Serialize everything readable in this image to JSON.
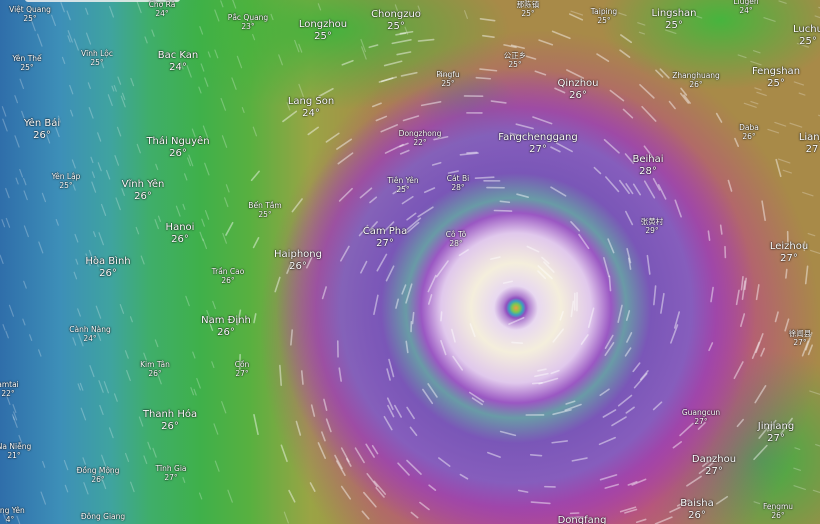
{
  "map": {
    "layer": "wind",
    "storm_eye_colors": [
      "#f0a040",
      "#7ec850",
      "#3aa0c0",
      "#9050c0"
    ],
    "labels": [
      {
        "name": "Việt Quang",
        "temp": "25°"
      },
      {
        "name": "Chợ Rã",
        "temp": "24°"
      },
      {
        "name": "Pắc Quang",
        "temp": "23°"
      },
      {
        "name": "Longzhou",
        "temp": "25°"
      },
      {
        "name": "Chongzuo",
        "temp": "25°"
      },
      {
        "name": "那陈镇",
        "temp": "25°"
      },
      {
        "name": "Taiping",
        "temp": "25°"
      },
      {
        "name": "Lingshan",
        "temp": "25°"
      },
      {
        "name": "Liugen",
        "temp": "24°"
      },
      {
        "name": "Luchu",
        "temp": "25°"
      },
      {
        "name": "Yên Thế",
        "temp": "25°"
      },
      {
        "name": "Vĩnh Lộc",
        "temp": "25°"
      },
      {
        "name": "Bac Kan",
        "temp": "24°"
      },
      {
        "name": "Pingfu",
        "temp": "25°"
      },
      {
        "name": "公正乡",
        "temp": "25°"
      },
      {
        "name": "Qinzhou",
        "temp": "26°"
      },
      {
        "name": "Zhanghuang",
        "temp": "26°"
      },
      {
        "name": "Fengshan",
        "temp": "25°"
      },
      {
        "name": "Lang Son",
        "temp": "24°"
      },
      {
        "name": "Yên Bái",
        "temp": "26°"
      },
      {
        "name": "Thái Nguyên",
        "temp": "26°"
      },
      {
        "name": "Dongzhong",
        "temp": "22°"
      },
      {
        "name": "Fangchenggang",
        "temp": "27°"
      },
      {
        "name": "Daba",
        "temp": "26°"
      },
      {
        "name": "Lianji",
        "temp": "27"
      },
      {
        "name": "Beihai",
        "temp": "28°"
      },
      {
        "name": "Yên Lập",
        "temp": "25°"
      },
      {
        "name": "Vĩnh Yên",
        "temp": "26°"
      },
      {
        "name": "Tiên Yên",
        "temp": "25°"
      },
      {
        "name": "Cát Bi",
        "temp": "28°"
      },
      {
        "name": "Bến Tắm",
        "temp": "25°"
      },
      {
        "name": "张黄村",
        "temp": "29°"
      },
      {
        "name": "Hanoi",
        "temp": "26°"
      },
      {
        "name": "Cam Pha",
        "temp": "27°"
      },
      {
        "name": "Cô Tô",
        "temp": "28°"
      },
      {
        "name": "Hòa Bình",
        "temp": "26°"
      },
      {
        "name": "Haiphong",
        "temp": "26°"
      },
      {
        "name": "Leizhou",
        "temp": "27°"
      },
      {
        "name": "Trần Cao",
        "temp": "26°"
      },
      {
        "name": "Cành Nàng",
        "temp": "24°"
      },
      {
        "name": "Nam Định",
        "temp": "26°"
      },
      {
        "name": "徐闻县",
        "temp": "27°"
      },
      {
        "name": "Kim Tân",
        "temp": "26°"
      },
      {
        "name": "Cồn",
        "temp": "27°"
      },
      {
        "name": "amtai",
        "temp": "22°"
      },
      {
        "name": "Thanh Hóa",
        "temp": "26°"
      },
      {
        "name": "Guangcun",
        "temp": "27°"
      },
      {
        "name": "Jinjiang",
        "temp": "27°"
      },
      {
        "name": "Na Niễng",
        "temp": "21°"
      },
      {
        "name": "Đồng Mộng",
        "temp": "26°"
      },
      {
        "name": "Tĩnh Gia",
        "temp": "27°"
      },
      {
        "name": "Danzhou",
        "temp": "27°"
      },
      {
        "name": "ằng Yên",
        "temp": "4°"
      },
      {
        "name": "Đông Giang",
        "temp": ""
      },
      {
        "name": "Baisha",
        "temp": "26°"
      },
      {
        "name": "Fengmu",
        "temp": "26°"
      },
      {
        "name": "Dongfang",
        "temp": ""
      }
    ]
  }
}
